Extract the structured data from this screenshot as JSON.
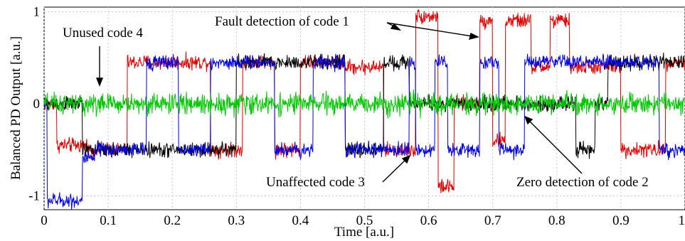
{
  "chart_data": {
    "type": "line",
    "xlabel": "Time [a.u.]",
    "ylabel": "Balanced PD Output [a.u.]",
    "xlim": [
      0,
      1
    ],
    "ylim": [
      -1.15,
      1.05
    ],
    "x_ticks": [
      "0",
      "0.1",
      "0.2",
      "0.3",
      "0.4",
      "0.5",
      "0.6",
      "0.7",
      "0.8",
      "0.9",
      "1"
    ],
    "y_ticks": [
      "-1",
      "0",
      "1"
    ],
    "grid": true,
    "colors": {
      "code1": "#e00000",
      "code2": "#000000",
      "code3": "#0000e0",
      "code4": "#00c800"
    },
    "series": [
      {
        "color_key": "code1",
        "noise": 0.05,
        "segments": [
          [
            0,
            0.02,
            0
          ],
          [
            0.02,
            0.07,
            -0.45
          ],
          [
            0.07,
            0.13,
            -0.5
          ],
          [
            0.13,
            0.16,
            0.45
          ],
          [
            0.16,
            0.2,
            0.45
          ],
          [
            0.2,
            0.26,
            0.45
          ],
          [
            0.26,
            0.31,
            -0.5
          ],
          [
            0.31,
            0.36,
            0.45
          ],
          [
            0.36,
            0.4,
            -0.5
          ],
          [
            0.4,
            0.43,
            0.45
          ],
          [
            0.43,
            0.47,
            0.45
          ],
          [
            0.47,
            0.53,
            0.4
          ],
          [
            0.53,
            0.58,
            -0.5
          ],
          [
            0.58,
            0.6,
            0.95
          ],
          [
            0.6,
            0.615,
            0.95
          ],
          [
            0.615,
            0.64,
            -0.9
          ],
          [
            0.64,
            0.68,
            0
          ],
          [
            0.68,
            0.7,
            0.9
          ],
          [
            0.7,
            0.72,
            -0.4
          ],
          [
            0.72,
            0.76,
            0.9
          ],
          [
            0.76,
            0.79,
            0.4
          ],
          [
            0.79,
            0.82,
            0.9
          ],
          [
            0.82,
            0.86,
            0.4
          ],
          [
            0.86,
            0.9,
            0.4
          ],
          [
            0.9,
            0.97,
            -0.5
          ],
          [
            0.97,
            1.0,
            0.45
          ]
        ]
      },
      {
        "color_key": "code2",
        "noise": 0.05,
        "segments": [
          [
            0,
            0.06,
            0
          ],
          [
            0.06,
            0.13,
            -0.5
          ],
          [
            0.13,
            0.18,
            -0.5
          ],
          [
            0.18,
            0.3,
            -0.5
          ],
          [
            0.3,
            0.36,
            0.45
          ],
          [
            0.36,
            0.42,
            0.45
          ],
          [
            0.42,
            0.47,
            0.45
          ],
          [
            0.47,
            0.53,
            -0.5
          ],
          [
            0.53,
            0.57,
            0.45
          ],
          [
            0.57,
            0.63,
            0
          ],
          [
            0.63,
            0.7,
            0
          ],
          [
            0.7,
            0.76,
            0
          ],
          [
            0.76,
            0.83,
            0
          ],
          [
            0.83,
            0.86,
            -0.5
          ],
          [
            0.86,
            0.88,
            0
          ],
          [
            0.88,
            0.9,
            0.45
          ],
          [
            0.9,
            1.0,
            0.45
          ]
        ]
      },
      {
        "color_key": "code3",
        "noise": 0.05,
        "segments": [
          [
            0,
            0.005,
            0
          ],
          [
            0.005,
            0.06,
            -1.05
          ],
          [
            0.06,
            0.08,
            -0.6
          ],
          [
            0.08,
            0.13,
            -0.5
          ],
          [
            0.13,
            0.16,
            -0.5
          ],
          [
            0.16,
            0.21,
            0.45
          ],
          [
            0.21,
            0.26,
            -0.5
          ],
          [
            0.26,
            0.3,
            0.45
          ],
          [
            0.3,
            0.36,
            0.45
          ],
          [
            0.36,
            0.42,
            -0.5
          ],
          [
            0.42,
            0.47,
            0.45
          ],
          [
            0.47,
            0.53,
            -0.5
          ],
          [
            0.53,
            0.57,
            -0.5
          ],
          [
            0.57,
            0.58,
            0.45
          ],
          [
            0.58,
            0.61,
            -0.5
          ],
          [
            0.61,
            0.63,
            0.45
          ],
          [
            0.63,
            0.68,
            -0.5
          ],
          [
            0.68,
            0.71,
            0.45
          ],
          [
            0.71,
            0.75,
            -0.5
          ],
          [
            0.75,
            0.79,
            0.45
          ],
          [
            0.79,
            0.83,
            0.45
          ],
          [
            0.83,
            0.9,
            0.45
          ],
          [
            0.9,
            0.96,
            0.45
          ],
          [
            0.96,
            1.0,
            -0.5
          ]
        ]
      },
      {
        "color_key": "code4",
        "noise": 0.07,
        "segments": [
          [
            0,
            1.0,
            0
          ]
        ]
      }
    ]
  },
  "annotations": {
    "fault_detection": "Fault detection of code 1",
    "unused": "Unused code 4",
    "unaffected": "Unaffected code 3",
    "zero_detection": "Zero detection of code 2"
  }
}
